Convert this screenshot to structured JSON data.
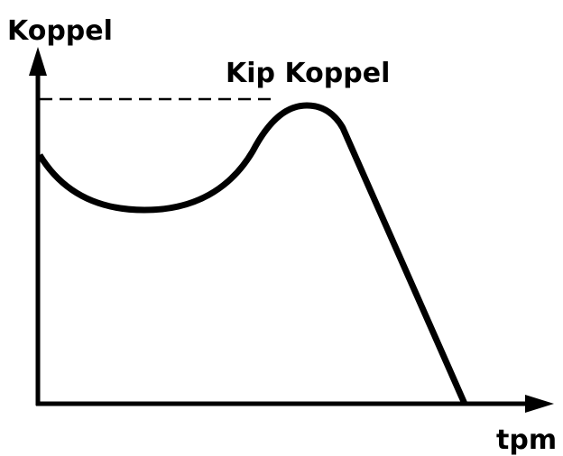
{
  "diagram": {
    "y_axis_label": "Koppel",
    "annotation": "Kip Koppel",
    "x_axis_label": "tpm"
  }
}
